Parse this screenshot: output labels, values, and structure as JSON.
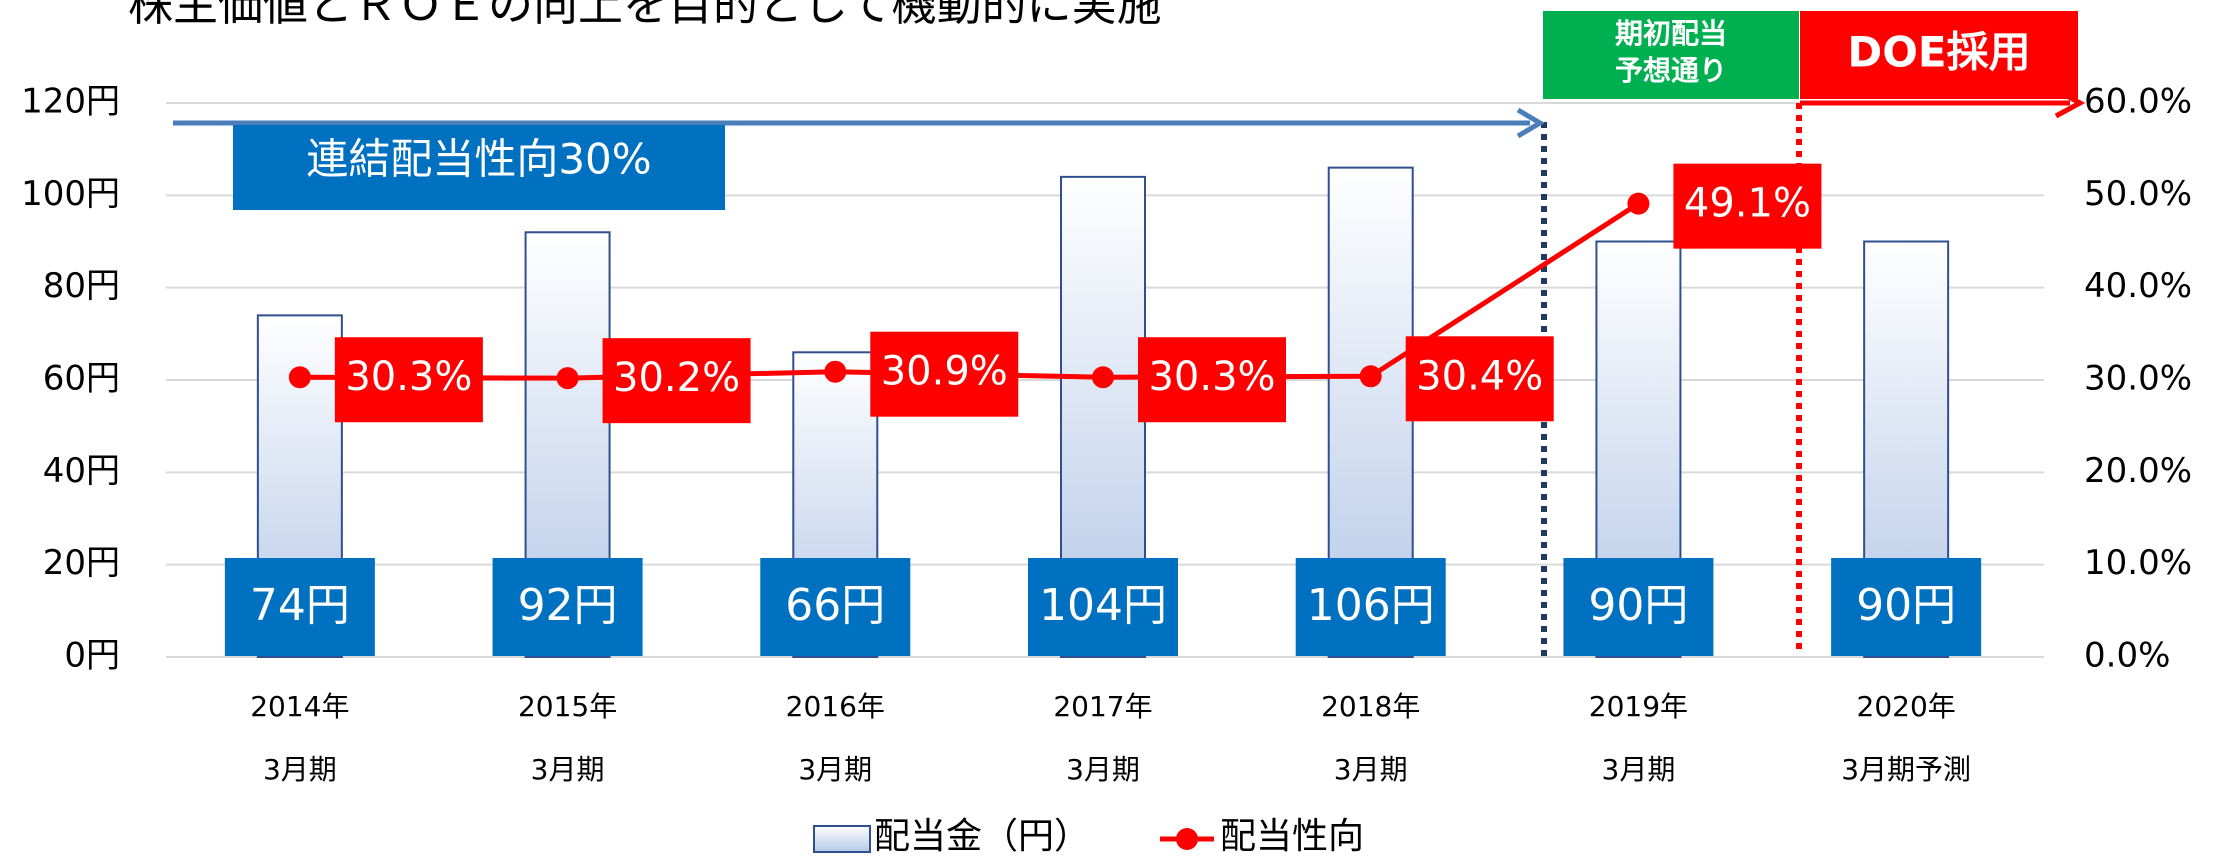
{
  "chart_data": {
    "type": "bar_line",
    "title": "株主価値とＲＯＥの向上を目的として機動的に実施",
    "categories": [
      [
        "2014年",
        "3月期"
      ],
      [
        "2015年",
        "3月期"
      ],
      [
        "2016年",
        "3月期"
      ],
      [
        "2017年",
        "3月期"
      ],
      [
        "2018年",
        "3月期"
      ],
      [
        "2019年",
        "3月期"
      ],
      [
        "2020年",
        "3月期予測"
      ]
    ],
    "series": [
      {
        "name": "配当金（円）",
        "type": "bar",
        "color": "#b4c7e7",
        "label_color": "#0070c0",
        "values": [
          74,
          92,
          66,
          104,
          106,
          90,
          90
        ],
        "value_labels": [
          "74円",
          "92円",
          "66円",
          "104円",
          "106円",
          "90円",
          "90円"
        ]
      },
      {
        "name": "配当性向",
        "type": "line",
        "axis": "y2",
        "color": "#ff0000",
        "label_color": "#ff0000",
        "values": [
          30.3,
          30.2,
          30.9,
          30.3,
          30.4,
          49.1,
          null
        ],
        "value_labels": [
          "30.3%",
          "30.2%",
          "30.9%",
          "30.3%",
          "30.4%",
          "49.1%",
          null
        ]
      }
    ],
    "ylim": [
      0,
      120
    ],
    "yticks": [
      {
        "value": 0,
        "label": "0円"
      },
      {
        "value": 20,
        "label": "20円"
      },
      {
        "value": 40,
        "label": "40円"
      },
      {
        "value": 60,
        "label": "60円"
      },
      {
        "value": 80,
        "label": "80円"
      },
      {
        "value": 100,
        "label": "100円"
      },
      {
        "value": 120,
        "label": "120円"
      }
    ],
    "y2lim": [
      0,
      60
    ],
    "y2ticks": [
      {
        "value": 0,
        "label": "0.0%"
      },
      {
        "value": 10,
        "label": "10.0%"
      },
      {
        "value": 20,
        "label": "20.0%"
      },
      {
        "value": 30,
        "label": "30.0%"
      },
      {
        "value": 40,
        "label": "40.0%"
      },
      {
        "value": 50,
        "label": "50.0%"
      },
      {
        "value": 60,
        "label": "60.0%"
      }
    ],
    "grid": true,
    "annotations": {
      "policy": "連結配当性向30%",
      "forecast": [
        "期初配当",
        "予想通り"
      ],
      "doe": "DOE採用"
    }
  }
}
